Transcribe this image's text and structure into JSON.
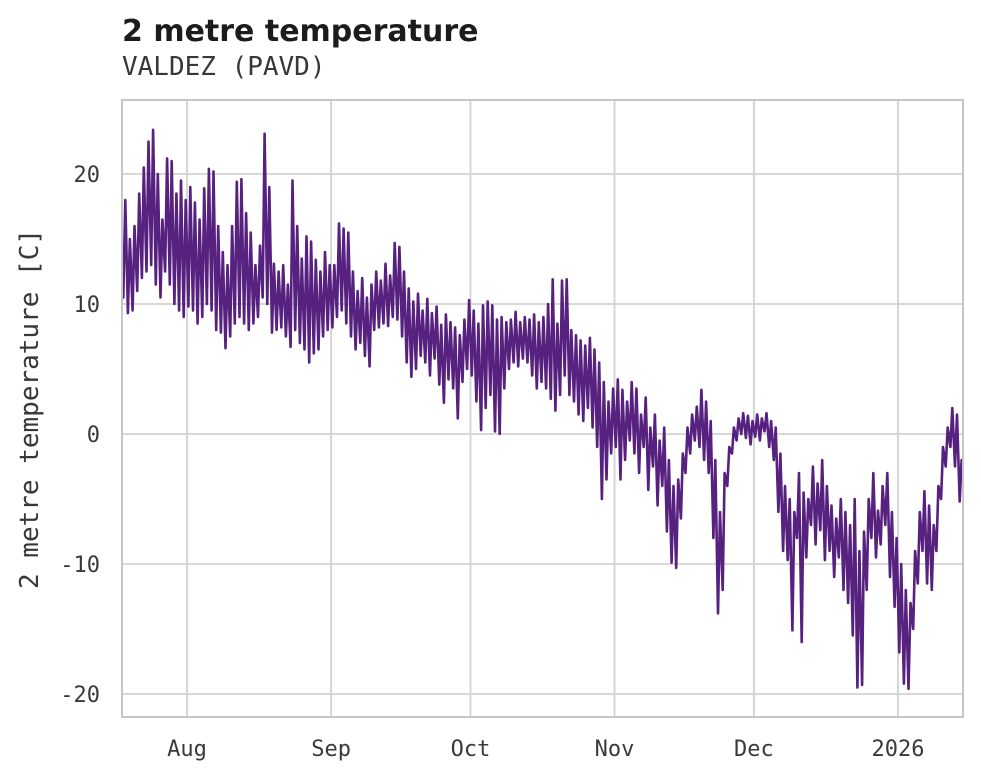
{
  "chart_data": {
    "type": "line",
    "title": "2 metre temperature",
    "subtitle": "VALDEZ (PAVD)",
    "ylabel": "2 metre temperature [C]",
    "xlabel": "",
    "legend": "none",
    "grid": true,
    "x_tick_labels": [
      "Aug",
      "Sep",
      "Oct",
      "Nov",
      "Dec",
      "2026"
    ],
    "x_tick_days": [
      14,
      45,
      75,
      106,
      136,
      167
    ],
    "x_domain_days": [
      0,
      181
    ],
    "yticks": [
      -20,
      -10,
      0,
      10,
      20
    ],
    "ylim": [
      -21.77,
      25.69
    ],
    "colors": {
      "line": "#57217f",
      "grid": "#d2d2d2",
      "spine": "#c6c6c6",
      "tick_text": "#3a3a3a",
      "title_text": "#1c1c1c",
      "background": "#ffffff"
    },
    "series": [
      {
        "name": "2 metre temperature",
        "station": "VALDEZ (PAVD)",
        "units": "C",
        "sampling": "daily min/max envelope of hourly trace, day 0 = mid-July, through mid-January 2026",
        "tmax": [
          18,
          15,
          16,
          18.5,
          20.5,
          22.5,
          23.4,
          20,
          16.5,
          21.2,
          21,
          18.5,
          19.5,
          18,
          19,
          17.8,
          16.5,
          18.9,
          20.4,
          20.2,
          16,
          14,
          13,
          16,
          19.4,
          19.6,
          17,
          15.5,
          13,
          14.5,
          23.1,
          19,
          13.1,
          12.5,
          13,
          11.5,
          19.5,
          16,
          13.5,
          15.2,
          14.8,
          13.4,
          12.5,
          14,
          13,
          13,
          16.2,
          15.8,
          15.5,
          12.5,
          11,
          12,
          10.5,
          11.5,
          12.5,
          11.8,
          13.1,
          12.2,
          14.7,
          14.4,
          12.5,
          11.2,
          10.2,
          10.8,
          9.5,
          10.4,
          9.3,
          9.8,
          8.4,
          9.2,
          8.6,
          8.2,
          7.6,
          8.8,
          10.3,
          9.5,
          8.5,
          9.9,
          10.2,
          9.9,
          8.8,
          9,
          8.6,
          8.8,
          9.4,
          8.6,
          9,
          8.8,
          9.2,
          8.6,
          9,
          10,
          11.9,
          8.5,
          11.8,
          11.9,
          8,
          7.6,
          7.2,
          6.8,
          7.4,
          6.5,
          5.5,
          4,
          2.5,
          3.5,
          4.2,
          3.4,
          2.5,
          4,
          3.5,
          1.5,
          2.8,
          0.5,
          1.5,
          -0.5,
          0.5,
          -2,
          -4,
          -3.5,
          -1.5,
          0.5,
          1.5,
          2.1,
          3.4,
          2.5,
          1,
          -2,
          -6,
          -3,
          -1,
          0.5,
          1.2,
          1.6,
          1.4,
          1,
          1.5,
          1.2,
          1.6,
          1,
          0.5,
          -1.5,
          -4,
          -5,
          -6,
          -3,
          -4.5,
          -5,
          -2.5,
          -3.8,
          -2,
          -4,
          -5.5,
          -6.5,
          -5,
          -6,
          -7,
          -5,
          -9,
          -7.5,
          -5,
          -3,
          -5.9,
          -4,
          -3,
          -6,
          -8,
          -10,
          -12,
          -13,
          -9,
          -6,
          -4.4,
          -5.5,
          -7,
          -4,
          -1,
          0.5,
          2,
          1.5,
          -2
        ],
        "tmin": [
          10.5,
          9.3,
          9.5,
          11,
          12,
          12.5,
          13,
          11.5,
          10.5,
          12.5,
          11.5,
          10,
          9.5,
          9,
          9.8,
          9.5,
          8.5,
          9,
          10,
          9.5,
          8,
          7.8,
          6.6,
          7.5,
          8.5,
          9,
          8.5,
          8,
          8.5,
          9,
          10.5,
          10,
          7.8,
          8,
          8.2,
          7.5,
          6.7,
          8,
          7,
          6.5,
          5.5,
          6.2,
          6.5,
          7.5,
          8,
          8.2,
          9,
          9.5,
          8.5,
          7.5,
          6.5,
          7,
          6,
          5.2,
          8,
          8.2,
          8.5,
          8.3,
          9,
          8.8,
          7.5,
          5.5,
          4.4,
          5,
          6,
          5.5,
          4.5,
          5.8,
          3.8,
          2.4,
          4.2,
          3.5,
          1.2,
          4,
          5,
          4.5,
          2.5,
          0.3,
          2,
          3,
          0.2,
          0,
          3.5,
          5,
          5.5,
          5.2,
          5.8,
          5.5,
          4.5,
          3.5,
          4,
          3.5,
          2.7,
          1.8,
          3,
          4.5,
          3,
          2.5,
          1.5,
          1,
          2,
          0.5,
          -1,
          -5,
          -3.5,
          -1.5,
          -1,
          -3.5,
          -2,
          -0.5,
          -1.5,
          -3,
          -1,
          -4.3,
          -2.5,
          -5.5,
          -4,
          -7.5,
          -9.9,
          -10.3,
          -6.5,
          -3,
          -1.5,
          -0.5,
          -1,
          -2,
          -3,
          -8,
          -13.8,
          -12,
          -4,
          -1.5,
          -0.5,
          0,
          -0.3,
          -0.8,
          -0.2,
          -0.5,
          0.2,
          -1,
          -2,
          -6,
          -9,
          -9.7,
          -15.1,
          -8,
          -16,
          -9.5,
          -7,
          -8.5,
          -7.4,
          -9.7,
          -9,
          -11,
          -9.5,
          -12,
          -13,
          -15.5,
          -19.5,
          -19.3,
          -12,
          -8,
          -9.5,
          -8.5,
          -7,
          -11,
          -13.3,
          -16.8,
          -19.2,
          -19.6,
          -15,
          -11.5,
          -9,
          -11.5,
          -12,
          -9,
          -5,
          -2.5,
          -1,
          -2.5,
          -5.2
        ]
      }
    ]
  }
}
